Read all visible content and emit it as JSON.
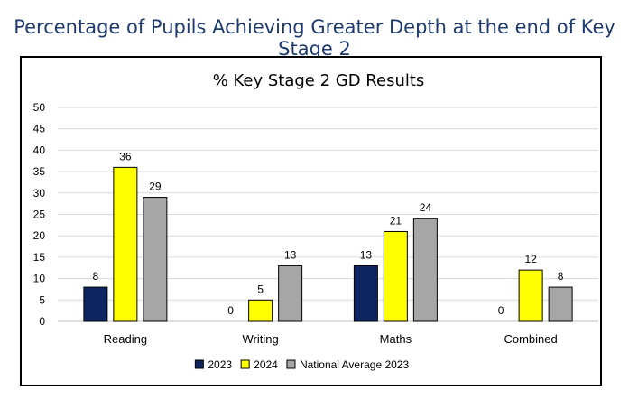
{
  "page_title": "Percentage of Pupils Achieving Greater Depth at the end of Key Stage 2",
  "chart_data": {
    "type": "bar",
    "title": "% Key Stage 2 GD Results",
    "categories": [
      "Reading",
      "Writing",
      "Maths",
      "Combined"
    ],
    "series": [
      {
        "name": "2023",
        "values": [
          8,
          0,
          13,
          0
        ],
        "color": "#0e2561"
      },
      {
        "name": "2024",
        "values": [
          36,
          5,
          21,
          12
        ],
        "color": "#ffff00"
      },
      {
        "name": "National Average 2023",
        "values": [
          29,
          13,
          24,
          8
        ],
        "color": "#a6a6a6"
      }
    ],
    "ylim": [
      0,
      50
    ],
    "yticks": [
      0,
      5,
      10,
      15,
      20,
      25,
      30,
      35,
      40,
      45,
      50
    ],
    "grid": true,
    "legend": "bottom"
  }
}
